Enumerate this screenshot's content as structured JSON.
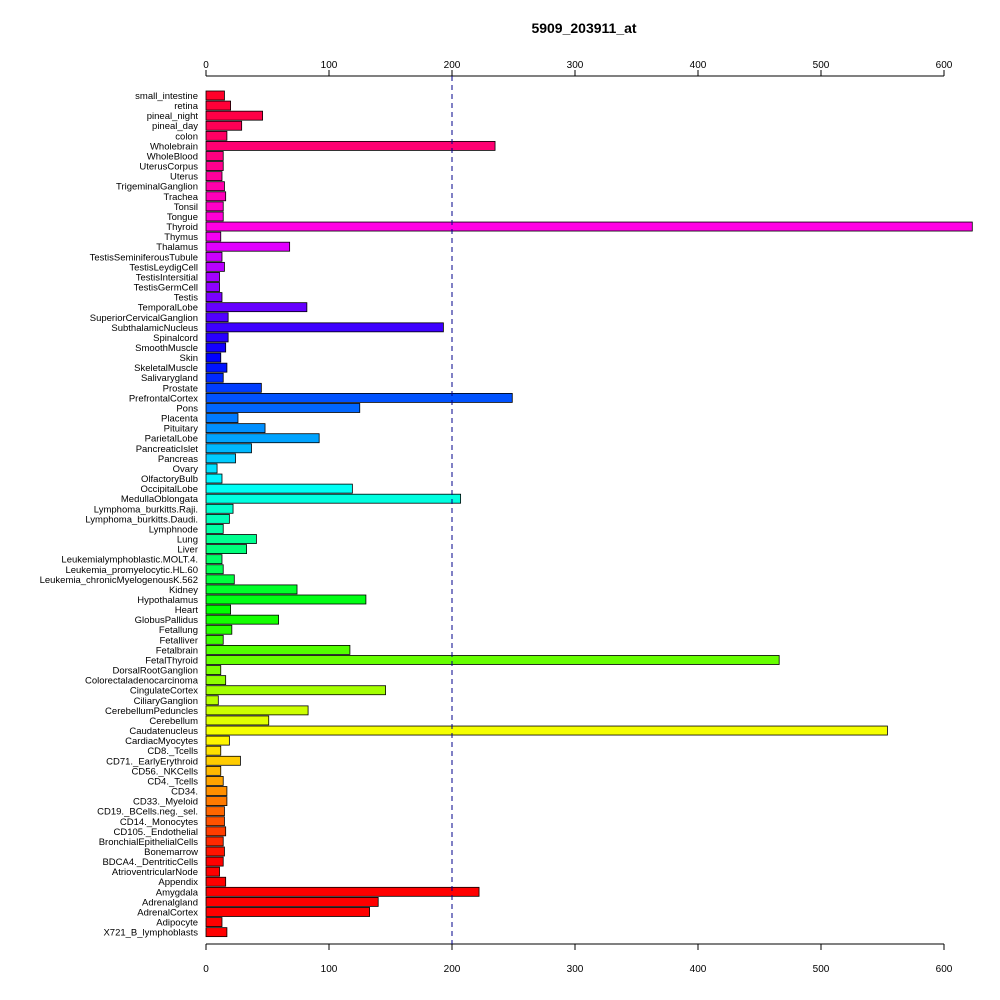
{
  "chart_data": {
    "type": "bar",
    "orientation": "horizontal",
    "title": "5909_203911_at",
    "xlim": [
      0,
      620
    ],
    "xticks": [
      0,
      100,
      200,
      300,
      400,
      500,
      600
    ],
    "reference_line": 200,
    "categories": [
      "small_intestine",
      "retina",
      "pineal_night",
      "pineal_day",
      "colon",
      "Wholebrain",
      "WholeBlood",
      "UterusCorpus",
      "Uterus",
      "TrigeminalGanglion",
      "Trachea",
      "Tonsil",
      "Tongue",
      "Thyroid",
      "Thymus",
      "Thalamus",
      "TestisSeminiferousTubule",
      "TestisLeydigCell",
      "TestisIntersitial",
      "TestisGermCell",
      "Testis",
      "TemporalLobe",
      "SuperiorCervicalGanglion",
      "SubthalamicNucleus",
      "Spinalcord",
      "SmoothMuscle",
      "Skin",
      "SkeletalMuscle",
      "Salivarygland",
      "Prostate",
      "PrefrontalCortex",
      "Pons",
      "Placenta",
      "Pituitary",
      "ParietalLobe",
      "PancreaticIslet",
      "Pancreas",
      "Ovary",
      "OlfactoryBulb",
      "OccipitalLobe",
      "MedullaOblongata",
      "Lymphoma_burkitts.Raji.",
      "Lymphoma_burkitts.Daudi.",
      "Lymphnode",
      "Lung",
      "Liver",
      "Leukemialymphoblastic.MOLT.4.",
      "Leukemia_promyelocytic.HL.60",
      "Leukemia_chronicMyelogenousK.562",
      "Kidney",
      "Hypothalamus",
      "Heart",
      "GlobusPallidus",
      "Fetallung",
      "Fetalliver",
      "Fetalbrain",
      "FetalThyroid",
      "DorsalRootGanglion",
      "Colorectaladenocarcinoma",
      "CingulateCortex",
      "CiliaryGanglion",
      "CerebellumPeduncles",
      "Cerebellum",
      "Caudatenucleus",
      "CardiacMyocytes",
      "CD8._Tcells",
      "CD71._EarlyErythroid",
      "CD56._NKCells",
      "CD4._Tcells",
      "CD34.",
      "CD33._Myeloid",
      "CD19._BCells.neg._sel.",
      "CD14._Monocytes",
      "CD105._Endothelial",
      "BronchialEpithelialCells",
      "Bonemarrow",
      "BDCA4._DentriticCells",
      "AtrioventricularNode",
      "Appendix",
      "Amygdala",
      "Adrenalgland",
      "AdrenalCortex",
      "Adipocyte",
      "X721_B_lymphoblasts"
    ],
    "values": [
      15,
      20,
      46,
      29,
      17,
      235,
      14,
      14,
      13,
      15,
      16,
      14,
      14,
      623,
      12,
      68,
      13,
      15,
      11,
      11,
      13,
      82,
      18,
      193,
      18,
      16,
      12,
      17,
      14,
      45,
      249,
      125,
      26,
      48,
      92,
      37,
      24,
      9,
      13,
      119,
      207,
      22,
      19,
      14,
      41,
      33,
      13,
      14,
      23,
      74,
      130,
      20,
      59,
      21,
      14,
      117,
      466,
      12,
      16,
      146,
      10,
      83,
      51,
      554,
      19,
      12,
      28,
      12,
      14,
      17,
      17,
      15,
      15,
      16,
      14,
      15,
      14,
      11,
      16,
      222,
      140,
      133,
      13,
      17
    ],
    "colors": [
      "#FF0029",
      "#FF0038",
      "#FF0046",
      "#FF0055",
      "#FF0063",
      "#FF0072",
      "#FF0080",
      "#FF008E",
      "#FF009C",
      "#FF00AB",
      "#FF00B9",
      "#FF00C7",
      "#FF00D6",
      "#FF00E4",
      "#F500F3",
      "#E100FF",
      "#CC00FF",
      "#B800FF",
      "#A300FF",
      "#8F00FF",
      "#7A00FF",
      "#6600FF",
      "#5200FF",
      "#3D00FF",
      "#2900FF",
      "#1400FF",
      "#0000FF",
      "#0014FF",
      "#0029FF",
      "#003DFF",
      "#0052FF",
      "#0066FF",
      "#007AFF",
      "#008FFF",
      "#00A3FF",
      "#00B8FF",
      "#00CCFF",
      "#00E0FF",
      "#00F5FF",
      "#00FFF5",
      "#00FFE0",
      "#00FFCC",
      "#00FFB8",
      "#00FFA3",
      "#00FF8F",
      "#00FF7A",
      "#00FF66",
      "#00FF52",
      "#00FF3D",
      "#00FF29",
      "#00FF14",
      "#00FF00",
      "#14FF00",
      "#29FF00",
      "#3DFF00",
      "#52FF00",
      "#66FF00",
      "#7AFF00",
      "#8FFF00",
      "#A3FF00",
      "#B8FF00",
      "#CCFF00",
      "#E0FF00",
      "#F5FF00",
      "#FFF500",
      "#FFE000",
      "#FFCC00",
      "#FFB800",
      "#FFA300",
      "#FF8F00",
      "#FF7A00",
      "#FF6600",
      "#FF5200",
      "#FF3D00",
      "#FF2900",
      "#FF1400",
      "#FF0000",
      "#FF0000",
      "#FF0000",
      "#FF0000",
      "#FF0000",
      "#FF0000",
      "#FF0000",
      "#FF0000"
    ]
  }
}
